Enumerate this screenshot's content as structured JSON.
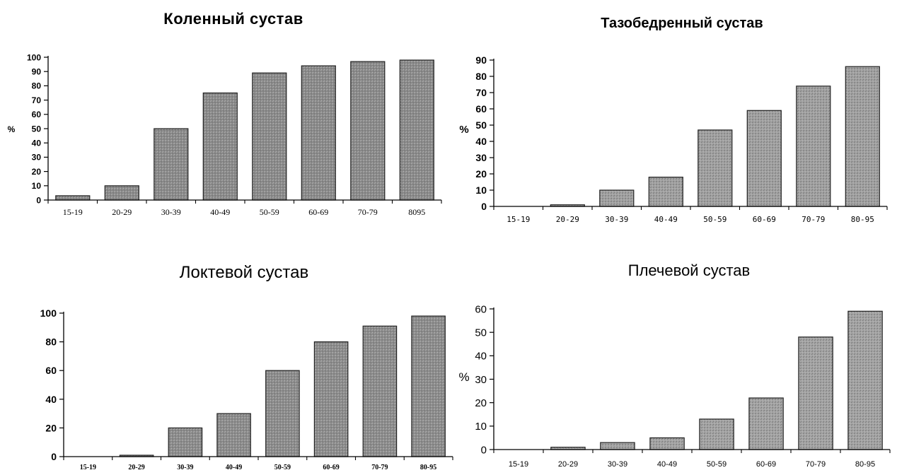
{
  "chart_data": [
    {
      "type": "bar",
      "title": "Коленный сустав",
      "ylabel": "%",
      "categories": [
        "15-19",
        "20-29",
        "30-39",
        "40-49",
        "50-59",
        "60-69",
        "70-79",
        "8095"
      ],
      "values": [
        3,
        10,
        50,
        75,
        89,
        94,
        97,
        98
      ],
      "ylim": [
        0,
        100
      ],
      "yticks": [
        0,
        10,
        20,
        30,
        40,
        50,
        60,
        70,
        80,
        90,
        100
      ],
      "ytick_labels": [
        "0",
        "10",
        "20",
        "30",
        "40",
        "50",
        "60",
        "70",
        "80",
        "90",
        "100"
      ],
      "bar_color": "#8a8a8a",
      "grid": false
    },
    {
      "type": "bar",
      "title": "Тазобедренный сустав",
      "ylabel": "%",
      "categories": [
        "15-19",
        "20-29",
        "30-39",
        "40-49",
        "50-59",
        "60-69",
        "70-79",
        "80-95"
      ],
      "values": [
        0,
        1,
        10,
        18,
        47,
        59,
        74,
        86
      ],
      "ylim": [
        0,
        90
      ],
      "yticks": [
        0,
        10,
        20,
        30,
        40,
        50,
        60,
        70,
        80,
        90
      ],
      "ytick_labels": [
        "0",
        "10",
        "20",
        "30",
        "40",
        "50",
        "60",
        "70",
        "80",
        "90"
      ],
      "bar_color": "#a0a0a0",
      "grid": false
    },
    {
      "type": "bar",
      "title": "Локтевой сустав",
      "ylabel": "",
      "categories": [
        "15-19",
        "20-29",
        "30-39",
        "40-49",
        "50-59",
        "60-69",
        "70-79",
        "80-95"
      ],
      "values": [
        0,
        1,
        20,
        30,
        60,
        80,
        91,
        98
      ],
      "ylim": [
        0,
        100
      ],
      "yticks": [
        0,
        20,
        40,
        60,
        80,
        100
      ],
      "ytick_labels": [
        "0",
        "20",
        "40",
        "60",
        "80",
        "100"
      ],
      "bar_color": "#8c8c8c",
      "grid": false
    },
    {
      "type": "bar",
      "title": "Плечевой сустав",
      "ylabel": "%",
      "categories": [
        "15-19",
        "20-29",
        "30-39",
        "40-49",
        "50-59",
        "60-69",
        "70-79",
        "80-95"
      ],
      "values": [
        0,
        1,
        3,
        5,
        13,
        22,
        48,
        59
      ],
      "ylim": [
        0,
        60
      ],
      "yticks": [
        0,
        10,
        20,
        30,
        40,
        50,
        60
      ],
      "ytick_labels": [
        "0",
        "10",
        "20",
        "30",
        "40",
        "50",
        "60"
      ],
      "bar_color": "#a3a3a3",
      "grid": false
    }
  ]
}
